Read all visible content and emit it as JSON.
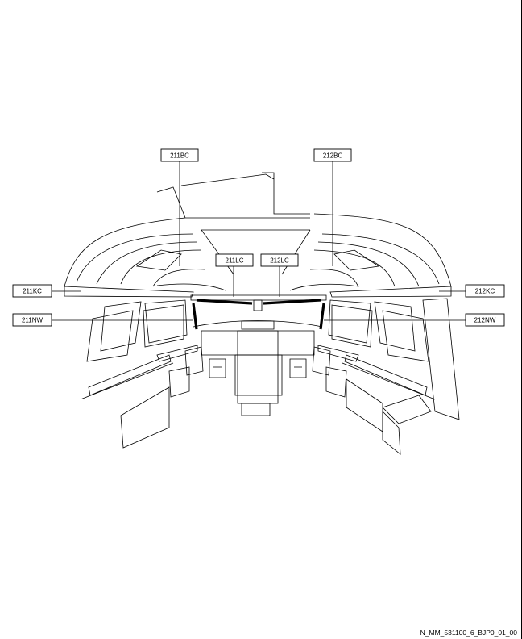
{
  "labels": {
    "bc_left": "211BC",
    "bc_right": "212BC",
    "kc_left": "211KC",
    "kc_right": "212KC",
    "lc_left": "211LC",
    "lc_right": "212LC",
    "nw_left": "211NW",
    "nw_right": "212NW"
  },
  "figure_id": "N_MM_531100_6_BJP0_01_00"
}
